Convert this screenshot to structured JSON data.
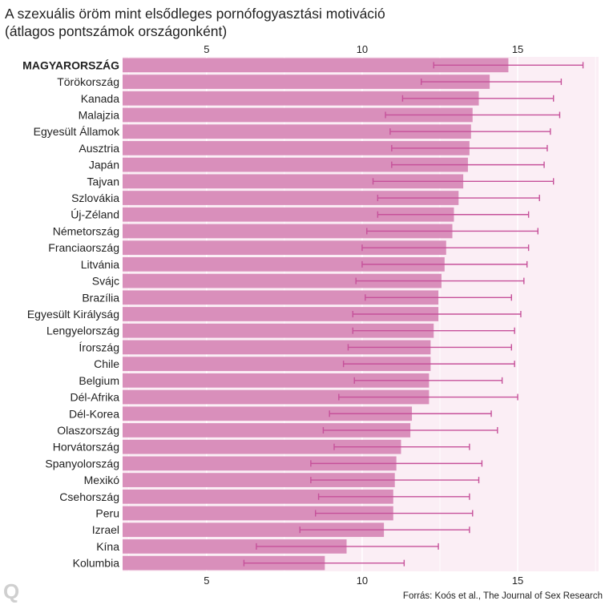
{
  "title_line1": "A szexuális öröm mint elsődleges pornófogyasztási motiváció",
  "title_line2": "(átlagos pontszámok országonként)",
  "source": "Forrás: Koós et al., The Journal of Sex Research",
  "logo": "Q",
  "colors": {
    "bar": "#d98fbb",
    "error_bar": "#c6519a",
    "panel_bg": "#fbeef5",
    "grid": "#ffffff",
    "tick_text": "#222222"
  },
  "chart_data": {
    "type": "bar",
    "orientation": "horizontal",
    "highlight": "MAGYARORSZÁG",
    "xlim": [
      2.3,
      17.6
    ],
    "xticks": [
      5,
      10,
      15
    ],
    "xaxis_position": "top and bottom",
    "grid": true,
    "categories": [
      "MAGYARORSZÁG",
      "Törökország",
      "Kanada",
      "Malajzia",
      "Egyesült Államok",
      "Ausztria",
      "Japán",
      "Tajvan",
      "Szlovákia",
      "Új-Zéland",
      "Németország",
      "Franciaország",
      "Litvánia",
      "Svájc",
      "Brazília",
      "Egyesült Királyság",
      "Lengyelország",
      "Írország",
      "Chile",
      "Belgium",
      "Dél-Afrika",
      "Dél-Korea",
      "Olaszország",
      "Horvátország",
      "Spanyolország",
      "Mexikó",
      "Csehország",
      "Peru",
      "Izrael",
      "Kína",
      "Kolumbia"
    ],
    "values": [
      14.7,
      14.1,
      13.75,
      13.55,
      13.5,
      13.45,
      13.4,
      13.25,
      13.1,
      12.95,
      12.9,
      12.7,
      12.65,
      12.55,
      12.45,
      12.45,
      12.3,
      12.2,
      12.2,
      12.15,
      12.15,
      11.6,
      11.55,
      11.25,
      11.1,
      11.05,
      11.0,
      11.0,
      10.7,
      9.5,
      8.8
    ],
    "error_low": [
      12.3,
      11.9,
      11.3,
      10.75,
      10.9,
      10.95,
      10.95,
      10.35,
      10.5,
      10.5,
      10.15,
      10.0,
      10.0,
      9.8,
      10.1,
      9.7,
      9.7,
      9.55,
      9.4,
      9.75,
      9.25,
      8.95,
      8.75,
      9.1,
      8.35,
      8.35,
      8.6,
      8.5,
      8.0,
      6.6,
      6.2
    ],
    "error_high": [
      17.1,
      16.4,
      16.15,
      16.35,
      16.05,
      15.95,
      15.85,
      16.15,
      15.7,
      15.35,
      15.65,
      15.35,
      15.3,
      15.2,
      14.8,
      15.1,
      14.9,
      14.8,
      14.9,
      14.5,
      15.0,
      14.15,
      14.35,
      13.45,
      13.85,
      13.75,
      13.45,
      13.55,
      13.45,
      12.45,
      11.35
    ]
  }
}
